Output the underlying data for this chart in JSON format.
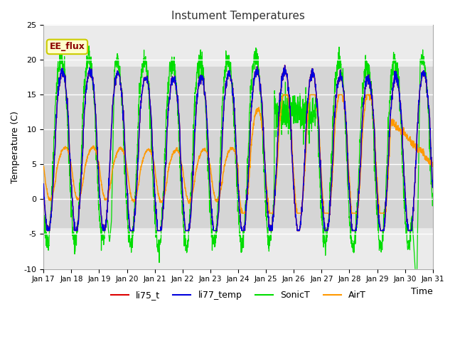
{
  "title": "Instument Temperatures",
  "xlabel": "Time",
  "ylabel": "Temperature (C)",
  "ylim": [
    -10,
    25
  ],
  "xlim": [
    0,
    14
  ],
  "xtick_labels": [
    "Jan 17",
    "Jan 18",
    "Jan 19",
    "Jan 20",
    "Jan 21",
    "Jan 22",
    "Jan 23",
    "Jan 24",
    "Jan 25",
    "Jan 26",
    "Jan 27",
    "Jan 28",
    "Jan 29",
    "Jan 30",
    "Jan 31"
  ],
  "xtick_positions": [
    0,
    1,
    2,
    3,
    4,
    5,
    6,
    7,
    8,
    9,
    10,
    11,
    12,
    13,
    14
  ],
  "shade_ymin": -4.0,
  "shade_ymax": 19.0,
  "series_colors": {
    "li75_t": "#dd0000",
    "li77_temp": "#0000dd",
    "SonicT": "#00dd00",
    "AirT": "#ff9900"
  },
  "legend_labels": [
    "li75_t",
    "li77_temp",
    "SonicT",
    "AirT"
  ],
  "annotation_text": "EE_flux",
  "background_color": "#ffffff",
  "plot_bg_color": "#ebebeb",
  "grid_color": "#ffffff",
  "title_color": "#333333"
}
